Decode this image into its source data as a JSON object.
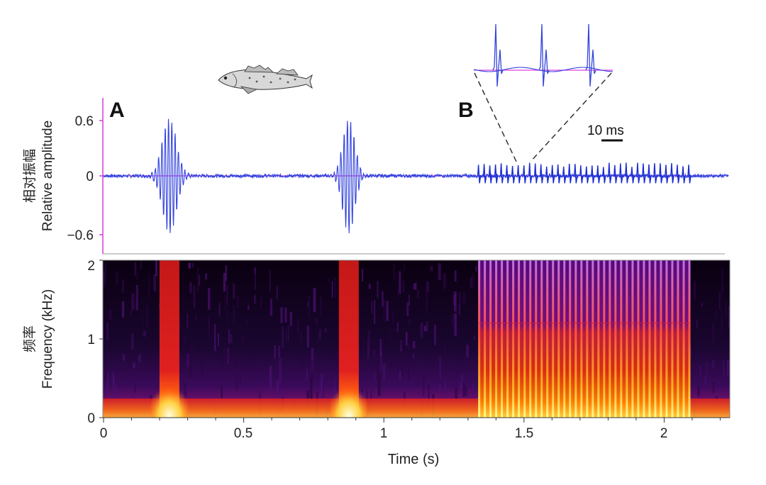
{
  "panel_labels": {
    "a": "A",
    "b": "B"
  },
  "scale_bar": {
    "label": "10 ms"
  },
  "waveform": {
    "ylabel_cn": "相对振幅",
    "ylabel_en": "Relative amplitude",
    "yticks": [
      "0.6",
      "0",
      "−0.6"
    ]
  },
  "spectrogram": {
    "ylabel_cn": "频率",
    "ylabel_en": "Frequency (kHz)",
    "yticks": [
      "2",
      "1",
      "0"
    ]
  },
  "time_axis": {
    "xlabel": "Time (s)",
    "xticks": [
      "0",
      "0.5",
      "1",
      "1.5",
      "2"
    ]
  },
  "illustration": {
    "subject": "goby fish drawing"
  },
  "colors": {
    "waveform": "#3344dd",
    "baseline": "#e040e0",
    "axis_frame": "#d63fd6",
    "spectrogram_cmap": [
      "#000000",
      "#3a0a5a",
      "#8a1070",
      "#e02020",
      "#ff8000",
      "#ffff80"
    ]
  },
  "chart_data": [
    {
      "type": "line",
      "title": "",
      "xlabel": "",
      "ylabel": "Relative amplitude",
      "xlim": [
        0,
        2.23
      ],
      "ylim": [
        -0.8,
        0.8
      ],
      "yticks": [
        0.6,
        0,
        -0.6
      ],
      "grid": false,
      "events": [
        {
          "panel": "A",
          "kind": "pulse",
          "t_start": 0.17,
          "t_end": 0.3,
          "peak_pos": 0.6,
          "peak_neg": -0.55
        },
        {
          "panel": "A",
          "kind": "pulse",
          "t_start": 0.82,
          "t_end": 0.93,
          "peak_pos": 0.6,
          "peak_neg": -0.5
        },
        {
          "panel": "B",
          "kind": "pulse_train",
          "t_start": 1.34,
          "t_end": 2.09,
          "pulse_count": 38,
          "peak_pos": 0.12,
          "peak_neg": -0.08
        }
      ],
      "inset": {
        "description": "zoom of pulse train",
        "scale_bar_ms": 10,
        "pulses_shown": 3
      }
    },
    {
      "type": "heatmap",
      "title": "",
      "xlabel": "Time (s)",
      "ylabel": "Frequency (kHz)",
      "xlim": [
        0,
        2.23
      ],
      "ylim": [
        0,
        2
      ],
      "xticks": [
        0,
        0.5,
        1,
        1.5,
        2
      ],
      "yticks": [
        0,
        1,
        2
      ],
      "bands": [
        {
          "t_start": 0.17,
          "t_end": 0.3,
          "f_max_khz": 2.0,
          "peak_f_khz": 0.1
        },
        {
          "t_start": 0.82,
          "t_end": 0.93,
          "f_max_khz": 2.0,
          "peak_f_khz": 0.1
        },
        {
          "t_start": 1.34,
          "t_end": 2.09,
          "f_max_khz": 2.0,
          "dense_below_khz": 1.2,
          "pulse_count": 38
        }
      ]
    }
  ]
}
